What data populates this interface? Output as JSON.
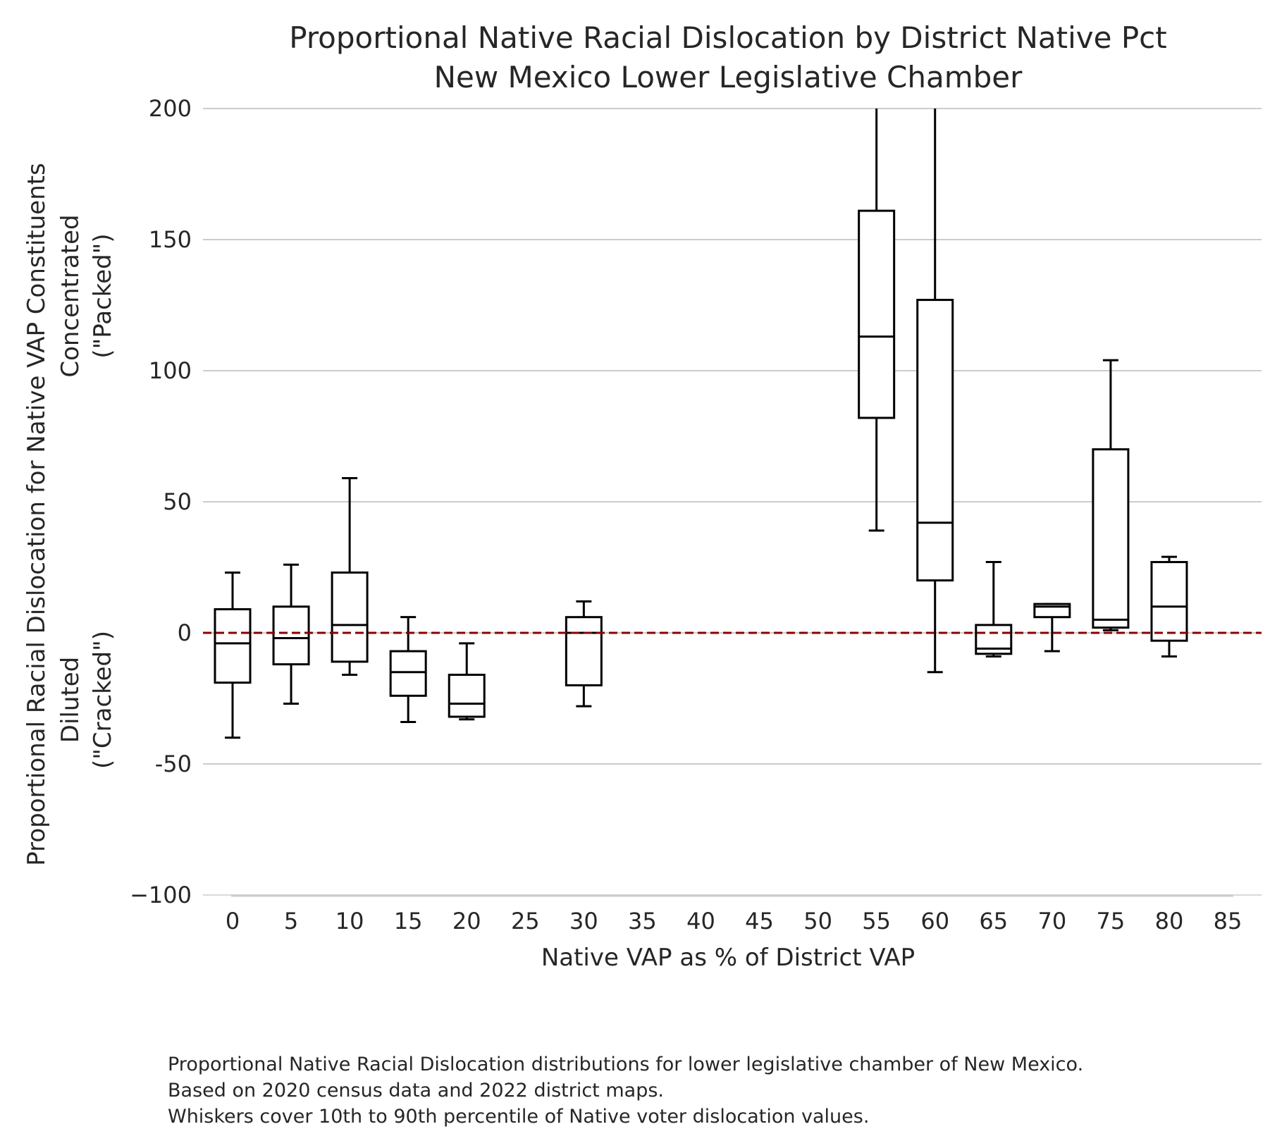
{
  "chart_data": {
    "type": "box",
    "title": "Proportional Native Racial Dislocation by District Native Pct",
    "subtitle": "New Mexico Lower Legislative Chamber",
    "xlabel": "Native VAP as % of District VAP",
    "ylabel_lines": [
      "Proportional Racial Dislocation for Native VAP Constituents",
      "Concentrated",
      "(\"Packed\")",
      "Diluted",
      "(\"Cracked\")"
    ],
    "ylim": [
      -100,
      200
    ],
    "yticks": [
      -100,
      -50,
      0,
      50,
      100,
      150,
      200
    ],
    "ytick_labels": [
      "−100",
      "-50",
      "0",
      "50",
      "100",
      "150",
      "200"
    ],
    "x_categories": [
      0,
      5,
      10,
      15,
      20,
      25,
      30,
      35,
      40,
      45,
      50,
      55,
      60,
      65,
      70,
      75,
      80,
      85
    ],
    "grid": true,
    "reference_line": {
      "y": 0,
      "color": "#8b0000",
      "style": "dashed"
    },
    "boxes": [
      {
        "x": 0,
        "whislo": -40,
        "q1": -19,
        "med": -4,
        "q3": 9,
        "whishi": 23
      },
      {
        "x": 5,
        "whislo": -27,
        "q1": -12,
        "med": -2,
        "q3": 10,
        "whishi": 26
      },
      {
        "x": 10,
        "whislo": -16,
        "q1": -11,
        "med": 3,
        "q3": 23,
        "whishi": 59
      },
      {
        "x": 15,
        "whislo": -34,
        "q1": -24,
        "med": -15,
        "q3": -7,
        "whishi": 6
      },
      {
        "x": 20,
        "whislo": -33,
        "q1": -32,
        "med": -27,
        "q3": -16,
        "whishi": -4
      },
      {
        "x": 30,
        "whislo": -28,
        "q1": -20,
        "med": 0,
        "q3": 6,
        "whishi": 12
      },
      {
        "x": 55,
        "whislo": 39,
        "q1": 82,
        "med": 113,
        "q3": 161,
        "whishi": 200
      },
      {
        "x": 60,
        "whislo": -15,
        "q1": 20,
        "med": 42,
        "q3": 127,
        "whishi": 200
      },
      {
        "x": 65,
        "whislo": -9,
        "q1": -8,
        "med": -6,
        "q3": 3,
        "whishi": 27
      },
      {
        "x": 70,
        "whislo": -7,
        "q1": 6,
        "med": 10,
        "q3": 11,
        "whishi": 11
      },
      {
        "x": 75,
        "whislo": 1,
        "q1": 2,
        "med": 5,
        "q3": 70,
        "whishi": 104
      },
      {
        "x": 80,
        "whislo": -9,
        "q1": -3,
        "med": 10,
        "q3": 27,
        "whishi": 29
      }
    ]
  },
  "caption": {
    "line1": "Proportional Native Racial Dislocation distributions for lower legislative chamber of New Mexico.",
    "line2": "Based on 2020 census data and 2022 district maps.",
    "line3": "Whiskers cover 10th to 90th percentile of Native voter dislocation values."
  }
}
